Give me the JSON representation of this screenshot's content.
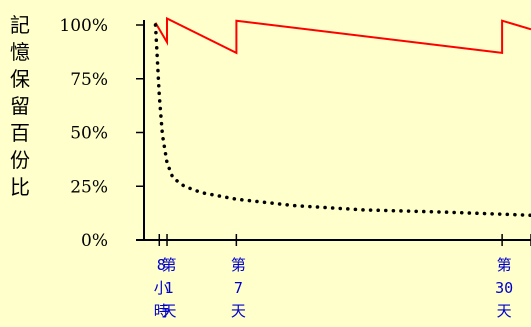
{
  "chart_data": {
    "type": "line",
    "ylabel": "記憶保留百份比",
    "yticks": [
      "0%",
      "25%",
      "50%",
      "75%",
      "100%"
    ],
    "ylim": [
      0,
      100
    ],
    "xlim": [
      -0.3,
      32.5
    ],
    "xticks": [
      {
        "x": 0.33,
        "label": "8\n小\n時"
      },
      {
        "x": 1,
        "label": "第\n1\n天"
      },
      {
        "x": 7,
        "label": "第\n7\n天"
      },
      {
        "x": 30,
        "label": "第\n30\n天"
      }
    ],
    "series": [
      {
        "style": "solid",
        "color": "#ff0000",
        "points": [
          [
            0,
            101
          ],
          [
            1,
            92
          ],
          [
            1,
            103
          ],
          [
            7,
            87
          ],
          [
            7,
            102
          ],
          [
            30,
            87
          ],
          [
            30,
            102
          ],
          [
            32.5,
            98
          ]
        ]
      },
      {
        "style": "dotted",
        "color": "#000000",
        "points": [
          [
            0,
            100
          ],
          [
            0.33,
            67
          ],
          [
            0.6,
            49
          ],
          [
            1,
            36
          ],
          [
            1.5,
            29
          ],
          [
            2.5,
            25
          ],
          [
            4,
            22
          ],
          [
            7,
            19
          ],
          [
            12,
            16
          ],
          [
            18,
            14
          ],
          [
            25,
            13
          ],
          [
            30,
            12
          ],
          [
            32.5,
            11.5
          ]
        ]
      }
    ],
    "grid": false,
    "legend": "none"
  }
}
